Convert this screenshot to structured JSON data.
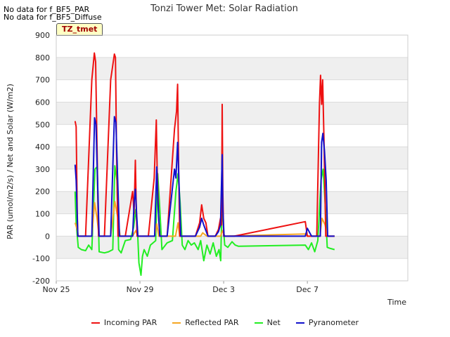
{
  "nodata": [
    "No data for f_BF5_PAR",
    "No data for f_BF5_Diffuse"
  ],
  "site_tag": "TZ_tmet",
  "colors": {
    "Incoming PAR": "#ee1111",
    "Reflected PAR": "#f5a623",
    "Net": "#22ee22",
    "Pyranometer": "#1111cc"
  },
  "chart_data": {
    "type": "line",
    "title": "Tonzi Tower Met: Solar Radiation",
    "xlabel": "Time",
    "ylabel": "PAR (umol/m2/s) / Net and Solar (W/m2)",
    "xlim": [
      0,
      16.8
    ],
    "ylim": [
      -200,
      900
    ],
    "yticks": [
      -200,
      -100,
      0,
      100,
      200,
      300,
      400,
      500,
      600,
      700,
      800,
      900
    ],
    "xticks": [
      {
        "value": 0,
        "label": "Nov 25"
      },
      {
        "value": 4,
        "label": "Nov 29"
      },
      {
        "value": 8,
        "label": "Dec 3"
      },
      {
        "value": 12,
        "label": "Dec 7"
      }
    ],
    "legend_position": "bottom",
    "series": [
      {
        "name": "Incoming PAR",
        "x": [
          0.9,
          0.95,
          1.0,
          1.03,
          1.08,
          1.4,
          1.7,
          1.82,
          1.88,
          1.95,
          2.02,
          2.3,
          2.6,
          2.78,
          2.83,
          2.88,
          2.95,
          3.02,
          3.3,
          3.65,
          3.72,
          3.78,
          3.82,
          3.86,
          3.9,
          3.97,
          4.1,
          4.4,
          4.68,
          4.78,
          4.82,
          4.9,
          4.95,
          5.3,
          5.65,
          5.75,
          5.8,
          5.85,
          5.9,
          5.97,
          6.05,
          6.3,
          6.65,
          6.85,
          6.95,
          7.05,
          7.15,
          7.25,
          7.3,
          7.6,
          7.75,
          7.85,
          7.9,
          7.93,
          7.96,
          8.0,
          8.1,
          8.5,
          11.9,
          12.0,
          12.2,
          12.45,
          12.58,
          12.63,
          12.68,
          12.73,
          12.8,
          12.88,
          12.95,
          13.3
        ],
        "values": [
          515,
          490,
          120,
          0,
          0,
          0,
          700,
          820,
          780,
          400,
          0,
          0,
          700,
          815,
          800,
          400,
          0,
          0,
          0,
          200,
          100,
          340,
          150,
          0,
          0,
          0,
          0,
          0,
          260,
          520,
          300,
          70,
          0,
          0,
          480,
          560,
          680,
          300,
          0,
          0,
          0,
          0,
          0,
          60,
          140,
          80,
          60,
          0,
          0,
          0,
          30,
          80,
          50,
          590,
          200,
          0,
          0,
          0,
          65,
          0,
          0,
          0,
          600,
          720,
          590,
          700,
          400,
          0,
          0,
          0
        ]
      },
      {
        "name": "Reflected PAR",
        "x": [
          0.9,
          1.0,
          1.05,
          1.7,
          1.83,
          1.95,
          2.05,
          2.6,
          2.8,
          2.95,
          3.05,
          3.65,
          3.8,
          3.9,
          4.7,
          4.8,
          4.9,
          5.7,
          5.82,
          5.9,
          6.9,
          7.0,
          7.2,
          7.85,
          7.95,
          8.05,
          11.9,
          12.0,
          12.6,
          12.7,
          12.85,
          12.95,
          13.3
        ],
        "values": [
          60,
          30,
          0,
          0,
          150,
          80,
          0,
          0,
          155,
          80,
          0,
          0,
          25,
          0,
          0,
          55,
          0,
          0,
          60,
          0,
          0,
          15,
          0,
          0,
          25,
          0,
          10,
          0,
          0,
          80,
          50,
          0,
          0
        ]
      },
      {
        "name": "Net",
        "x": [
          0.9,
          0.95,
          1.05,
          1.2,
          1.4,
          1.55,
          1.7,
          1.85,
          1.95,
          2.05,
          2.3,
          2.5,
          2.7,
          2.8,
          2.9,
          2.98,
          3.1,
          3.3,
          3.55,
          3.7,
          3.8,
          3.88,
          3.95,
          4.05,
          4.12,
          4.2,
          4.35,
          4.5,
          4.75,
          4.85,
          4.95,
          5.05,
          5.3,
          5.55,
          5.72,
          5.82,
          5.92,
          6.02,
          6.15,
          6.3,
          6.45,
          6.6,
          6.78,
          6.9,
          7.05,
          7.2,
          7.35,
          7.5,
          7.65,
          7.78,
          7.86,
          7.92,
          7.98,
          8.05,
          8.2,
          8.4,
          8.55,
          8.7,
          11.9,
          12.05,
          12.2,
          12.35,
          12.5,
          12.65,
          12.75,
          12.85,
          12.95,
          13.1,
          13.3
        ],
        "values": [
          200,
          60,
          -50,
          -60,
          -65,
          -40,
          -60,
          300,
          310,
          -70,
          -75,
          -70,
          -60,
          315,
          250,
          -60,
          -75,
          -20,
          -15,
          40,
          120,
          30,
          -120,
          -175,
          -90,
          -60,
          -90,
          -40,
          -20,
          280,
          120,
          -60,
          -30,
          -20,
          200,
          280,
          150,
          -40,
          -60,
          -20,
          -40,
          -30,
          -60,
          -20,
          -110,
          -40,
          -80,
          -30,
          -90,
          -60,
          -110,
          150,
          50,
          -40,
          -50,
          -25,
          -40,
          -45,
          -40,
          -60,
          -30,
          -70,
          -20,
          250,
          300,
          150,
          -50,
          -55,
          -60
        ]
      },
      {
        "name": "Pyranometer",
        "x": [
          0.9,
          0.95,
          1.03,
          1.08,
          1.4,
          1.7,
          1.83,
          1.9,
          1.96,
          2.05,
          2.3,
          2.6,
          2.78,
          2.85,
          2.92,
          3.02,
          3.3,
          3.65,
          3.72,
          3.78,
          3.84,
          3.9,
          3.97,
          4.1,
          4.4,
          4.7,
          4.8,
          4.86,
          4.95,
          5.3,
          5.65,
          5.72,
          5.8,
          5.88,
          5.95,
          6.05,
          6.3,
          6.65,
          6.85,
          6.95,
          7.05,
          7.25,
          7.3,
          7.6,
          7.75,
          7.85,
          7.93,
          7.96,
          8.02,
          8.1,
          8.5,
          11.9,
          12.0,
          12.2,
          12.45,
          12.62,
          12.68,
          12.74,
          12.82,
          12.9,
          12.97,
          13.3
        ],
        "values": [
          320,
          250,
          0,
          0,
          0,
          0,
          530,
          500,
          300,
          0,
          0,
          0,
          535,
          510,
          300,
          0,
          0,
          0,
          150,
          210,
          100,
          0,
          0,
          0,
          0,
          0,
          310,
          150,
          0,
          0,
          300,
          260,
          420,
          200,
          0,
          0,
          0,
          0,
          40,
          80,
          50,
          0,
          0,
          0,
          20,
          50,
          365,
          120,
          0,
          0,
          0,
          0,
          35,
          0,
          0,
          0,
          420,
          460,
          380,
          250,
          0,
          0
        ]
      }
    ]
  }
}
